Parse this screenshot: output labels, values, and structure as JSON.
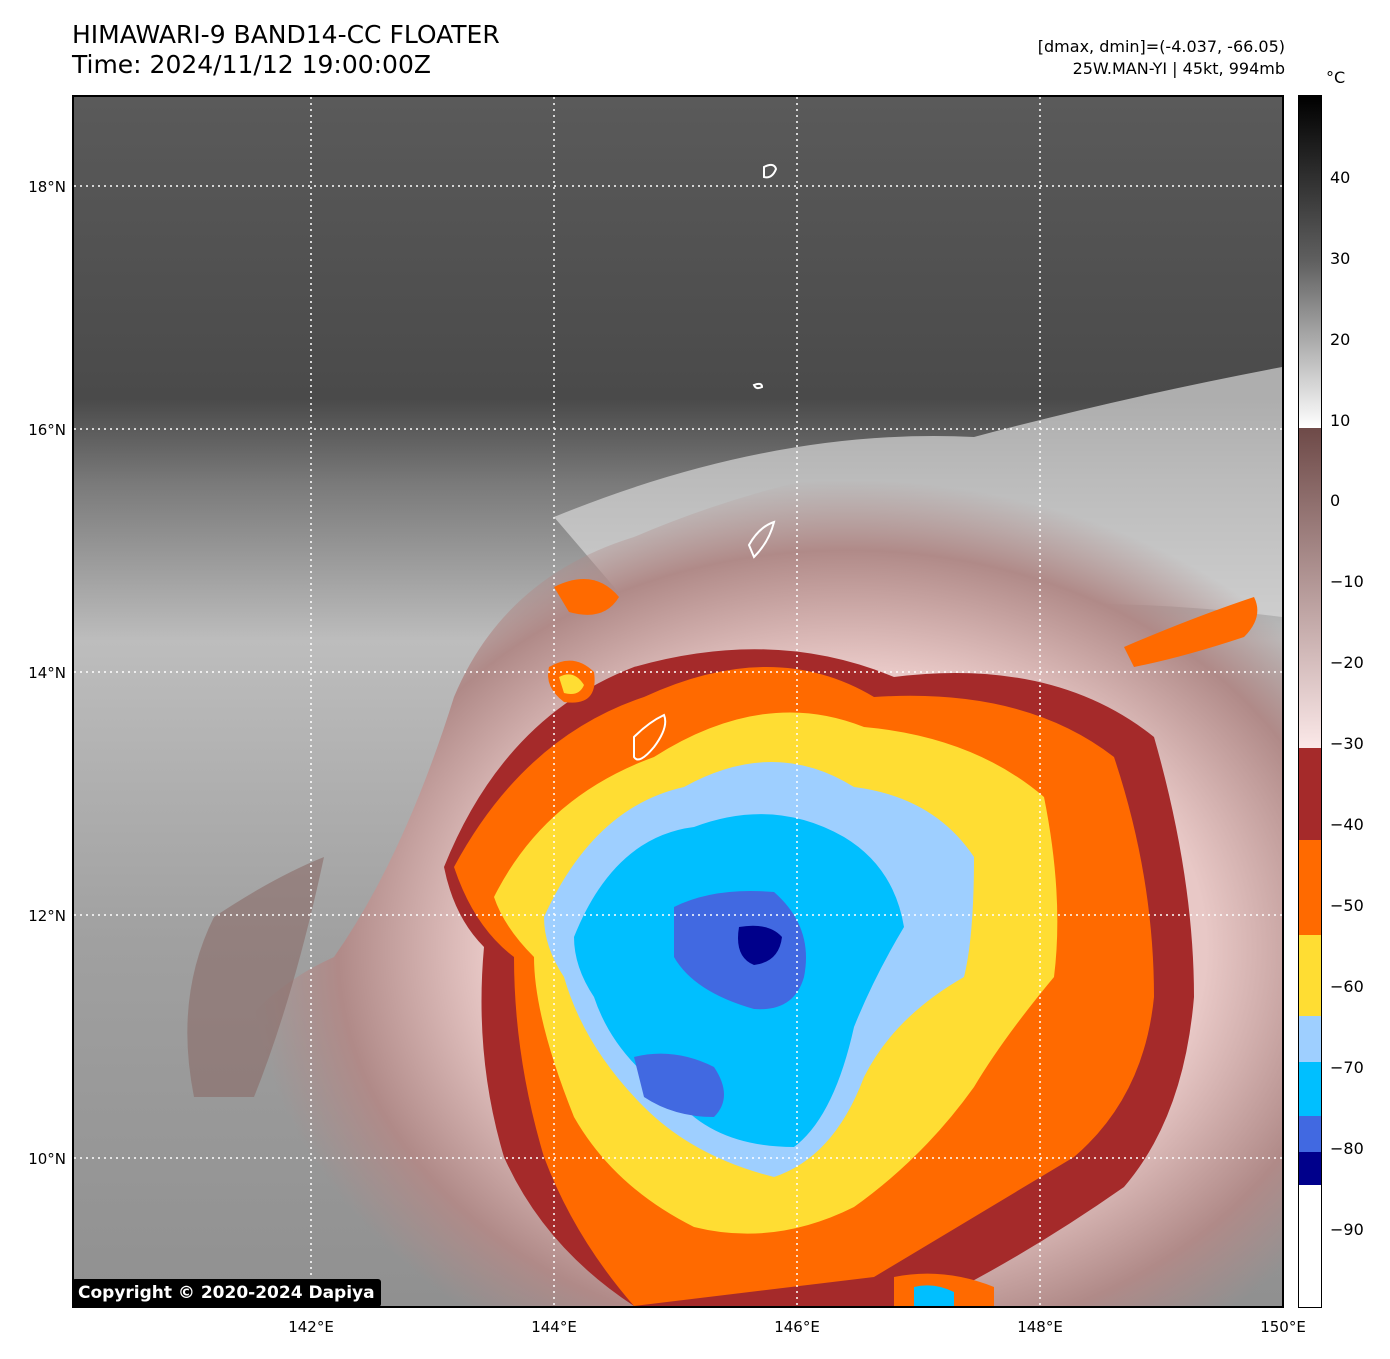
{
  "header": {
    "title_line1": "HIMAWARI-9 BAND14-CC FLOATER",
    "title_line2": "Time: 2024/11/12 19:00:00Z",
    "dminmax": "[dmax, dmin]=(-4.037, -66.05)",
    "storm": "25W.MAN-YI | 45kt, 994mb"
  },
  "map": {
    "lat_labels": [
      "18°N",
      "16°N",
      "14°N",
      "12°N",
      "10°N"
    ],
    "lon_labels": [
      "142°E",
      "144°E",
      "146°E",
      "148°E",
      "150°E"
    ],
    "copyright": "Copyright © 2020-2024 Dapiya"
  },
  "colorbar": {
    "unit": "°C",
    "ticks": [
      "40",
      "30",
      "20",
      "10",
      "0",
      "−10",
      "−20",
      "−30",
      "−40",
      "−50",
      "−60",
      "−70",
      "−80",
      "−90"
    ],
    "colors": {
      "warm_top": "#000000",
      "gray": "#808080",
      "white": "#ffffff",
      "rose_brown": "#7a5552",
      "pale_pink": "#f5dede",
      "dark_red": "#a52a2a",
      "orange": "#ff6a00",
      "yellow": "#ffdd33",
      "light_blue": "#9ecfff",
      "sky_blue": "#00bfff",
      "royal_blue": "#4169e1",
      "navy": "#00008b"
    }
  }
}
